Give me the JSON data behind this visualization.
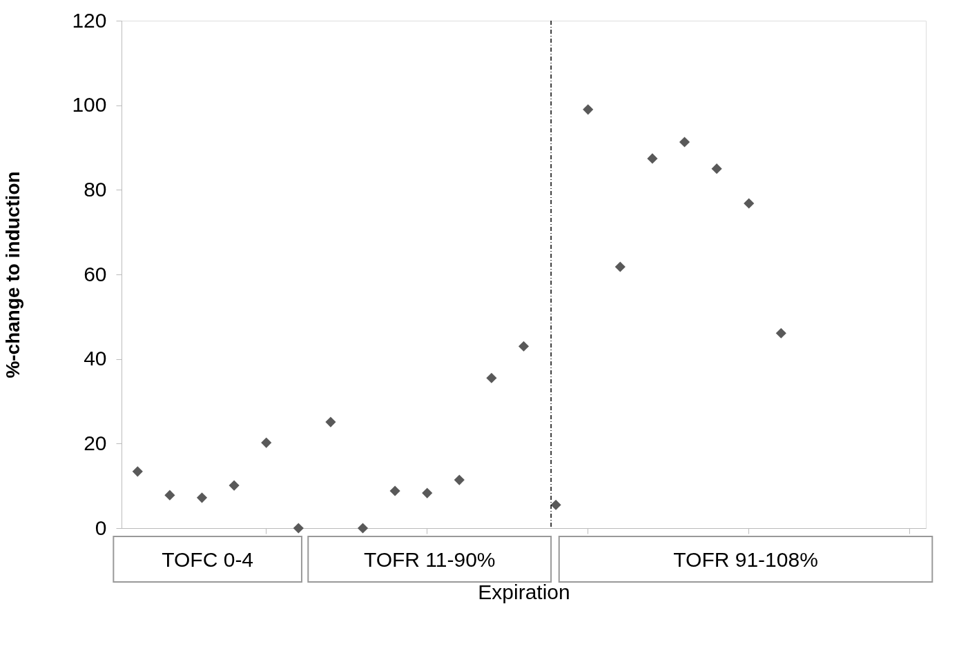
{
  "chart_data": {
    "type": "scatter",
    "xlabel": "Expiration",
    "ylabel": "%-change to induction",
    "categories": [
      null,
      null,
      null,
      null,
      null,
      null,
      null,
      null,
      null,
      null,
      null,
      null,
      null,
      null,
      null,
      null,
      null,
      null,
      null,
      null,
      null,
      null,
      null,
      null,
      null
    ],
    "series": [
      {
        "color": "#595959",
        "values": [
          13.4,
          7.8,
          7.2,
          10.1,
          20.2,
          0,
          25.1,
          0,
          8.8,
          8.3,
          11.4,
          35.5,
          43.0,
          5.5,
          99.0,
          61.8,
          87.4,
          91.3,
          85.0,
          76.8,
          46.1,
          null,
          null,
          null,
          null
        ]
      }
    ],
    "ylim": [
      0,
      120
    ],
    "yticks": [
      0,
      20,
      40,
      60,
      80,
      100,
      120
    ],
    "tick_labels": "y",
    "marker": "diamond",
    "annotations": [
      "TOFC 0-4",
      "TOFR 11-90%",
      "TOFR 91-108%"
    ]
  }
}
